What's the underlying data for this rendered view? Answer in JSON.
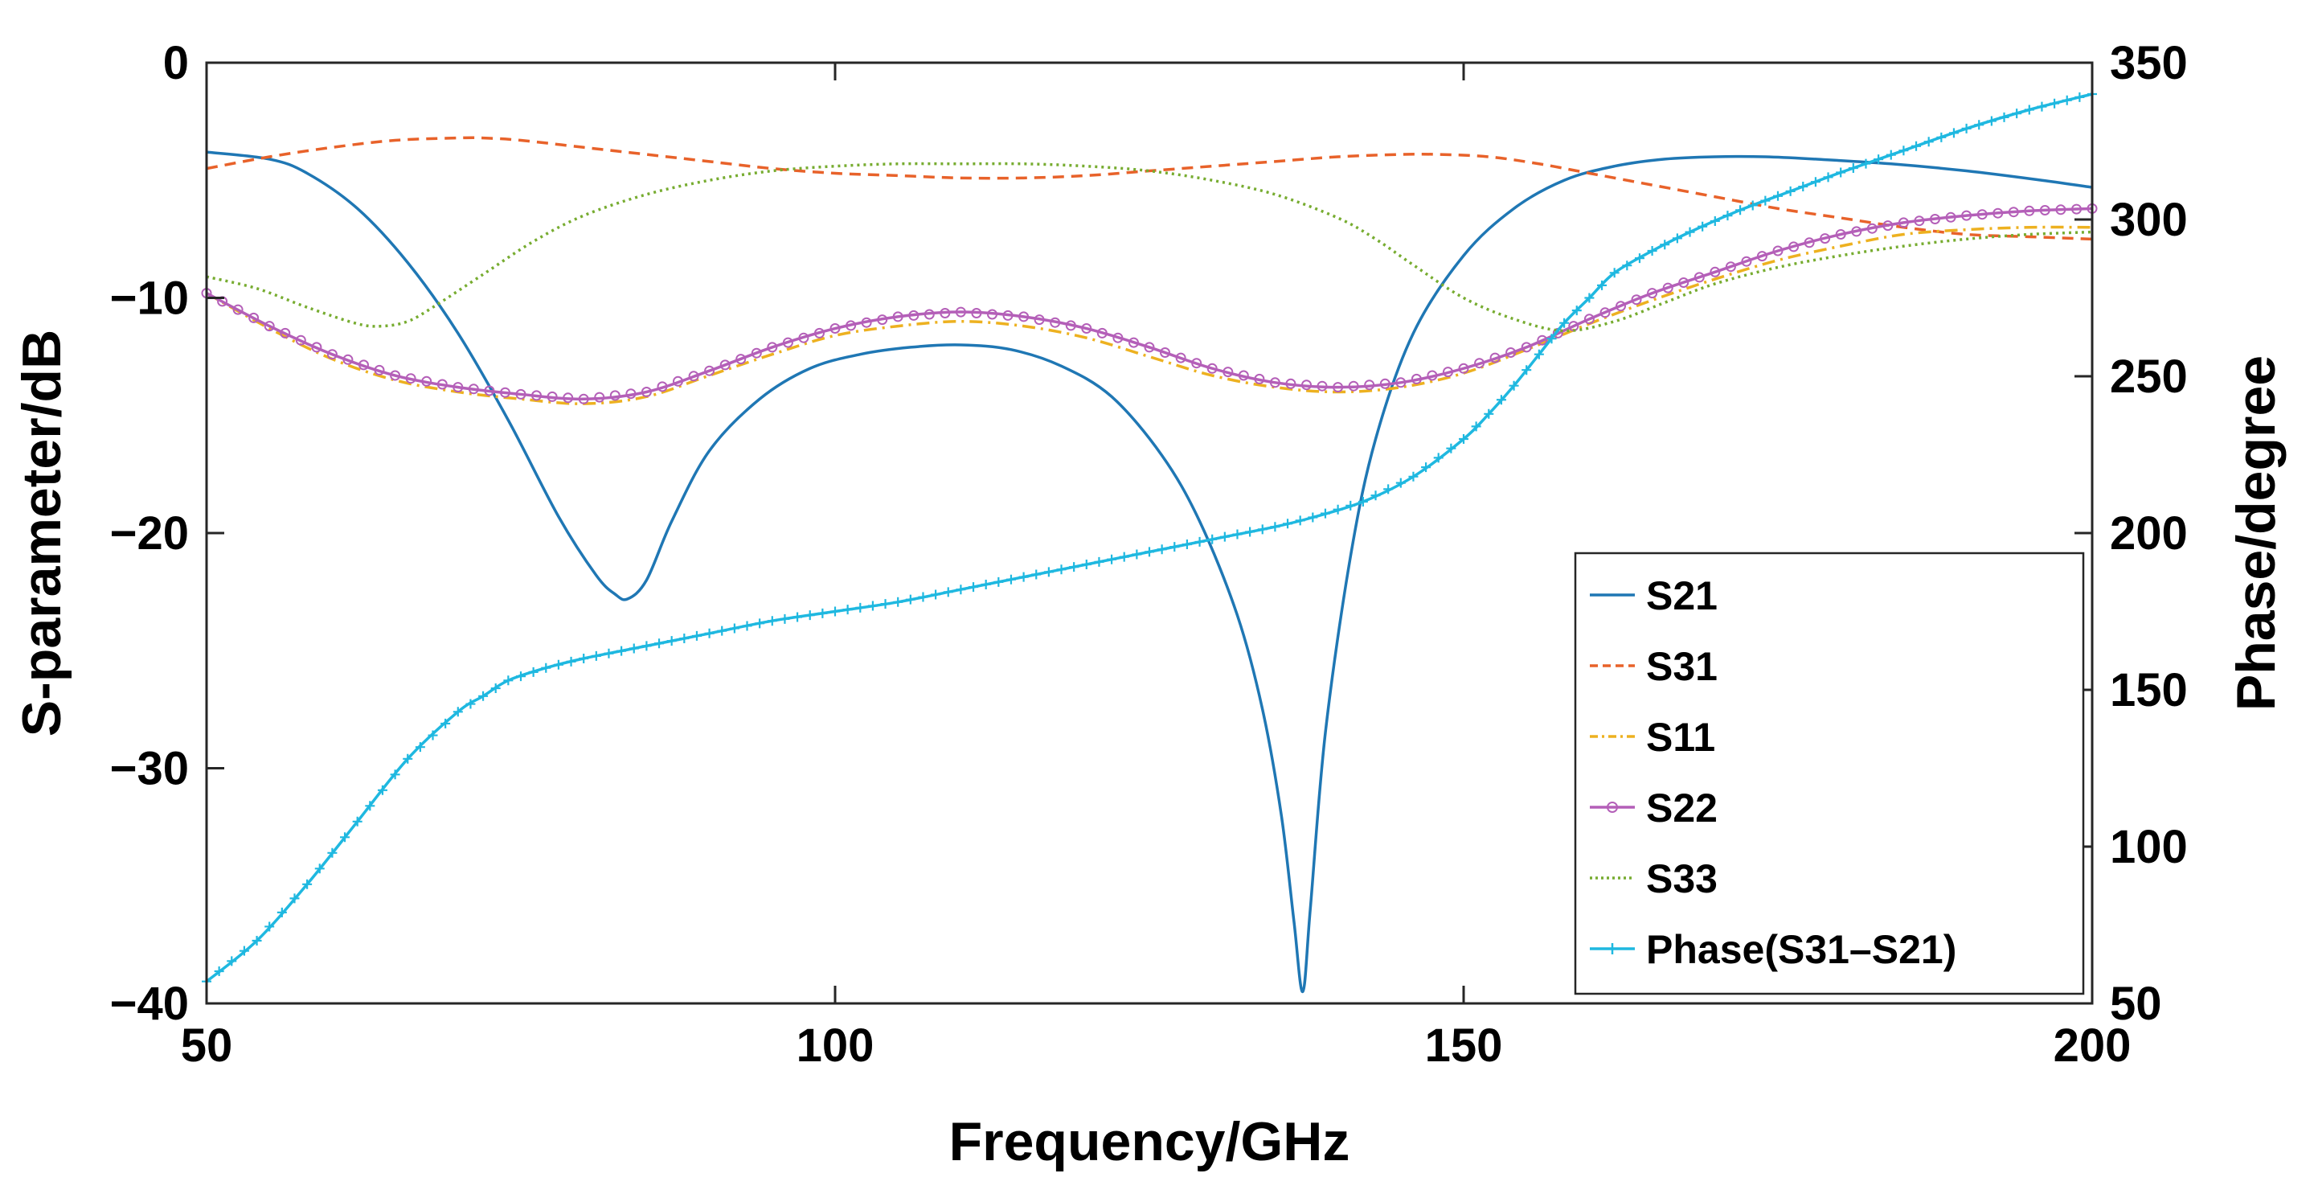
{
  "chart_data": {
    "type": "line",
    "xlabel": "Frequency/GHz",
    "ylabel": "S-parameter/dB",
    "y2label": "Phase/degree",
    "xlim": [
      50,
      200
    ],
    "ylim": [
      -40,
      0
    ],
    "y2lim": [
      50,
      350
    ],
    "xticks": [
      50,
      100,
      150,
      200
    ],
    "xtick_labels": [
      "50",
      "100",
      "150",
      "200"
    ],
    "yticks": [
      0,
      -10,
      -20,
      -30,
      -40
    ],
    "ytick_labels": [
      "0",
      "−10",
      "−20",
      "−30",
      "−40"
    ],
    "y2ticks": [
      350,
      300,
      250,
      200,
      150,
      100,
      50
    ],
    "y2tick_labels": [
      "350",
      "300",
      "250",
      "200",
      "150",
      "100",
      "50"
    ],
    "grid": false,
    "legend_position": "bottom-right",
    "series": [
      {
        "name": "S21",
        "axis": "left",
        "color": "#1f77b4",
        "dash": "solid",
        "marker": "none",
        "x": [
          50,
          55,
          58,
          62,
          66,
          70,
          74,
          78,
          81,
          82.5,
          83.5,
          85,
          87,
          90,
          94,
          98,
          102,
          106,
          110,
          114,
          118,
          122,
          126,
          129,
          132,
          134,
          135.5,
          136.5,
          137.2,
          137.8,
          139,
          141,
          143,
          146,
          150,
          154,
          158,
          162,
          166,
          170,
          174,
          178,
          184,
          190,
          196,
          200
        ],
        "y": [
          -3.8,
          -4.1,
          -4.7,
          -6.2,
          -8.5,
          -11.5,
          -15.2,
          -19.3,
          -21.8,
          -22.6,
          -22.8,
          -22.0,
          -19.5,
          -16.5,
          -14.3,
          -13.0,
          -12.4,
          -12.1,
          -12.0,
          -12.2,
          -12.9,
          -14.2,
          -16.7,
          -19.5,
          -23.5,
          -27.5,
          -32.0,
          -36.5,
          -39.5,
          -36.0,
          -28.5,
          -21.0,
          -16.0,
          -11.5,
          -8.2,
          -6.2,
          -5.0,
          -4.4,
          -4.1,
          -4.0,
          -4.0,
          -4.1,
          -4.3,
          -4.6,
          -5.0,
          -5.3
        ]
      },
      {
        "name": "S31",
        "axis": "left",
        "color": "#e8622a",
        "dash": "dashed",
        "marker": "none",
        "x": [
          50,
          55,
          60,
          65,
          70,
          72,
          75,
          80,
          85,
          90,
          95,
          100,
          105,
          110,
          115,
          120,
          125,
          130,
          135,
          140,
          145,
          148,
          152,
          156,
          160,
          165,
          170,
          175,
          180,
          185,
          190,
          195,
          200
        ],
        "y": [
          -4.5,
          -4.0,
          -3.6,
          -3.3,
          -3.2,
          -3.2,
          -3.3,
          -3.6,
          -3.9,
          -4.2,
          -4.5,
          -4.7,
          -4.8,
          -4.9,
          -4.9,
          -4.8,
          -4.6,
          -4.4,
          -4.2,
          -4.0,
          -3.9,
          -3.9,
          -4.0,
          -4.3,
          -4.7,
          -5.2,
          -5.7,
          -6.2,
          -6.6,
          -7.0,
          -7.3,
          -7.4,
          -7.5
        ]
      },
      {
        "name": "S11",
        "axis": "left",
        "color": "#edb120",
        "dash": "dashdot",
        "marker": "none",
        "x": [
          50,
          55,
          60,
          65,
          70,
          75,
          80,
          85,
          90,
          95,
          100,
          105,
          110,
          115,
          120,
          125,
          130,
          135,
          140,
          145,
          150,
          155,
          160,
          165,
          170,
          175,
          180,
          185,
          190,
          195,
          200
        ],
        "y": [
          -9.8,
          -11.3,
          -12.6,
          -13.5,
          -14.0,
          -14.3,
          -14.5,
          -14.2,
          -13.3,
          -12.4,
          -11.6,
          -11.2,
          -11.0,
          -11.2,
          -11.7,
          -12.5,
          -13.3,
          -13.8,
          -14.0,
          -13.8,
          -13.2,
          -12.2,
          -11.1,
          -10.1,
          -9.2,
          -8.4,
          -7.8,
          -7.3,
          -7.1,
          -7.0,
          -7.0
        ]
      },
      {
        "name": "S22",
        "axis": "left",
        "color": "#b45fb8",
        "dash": "solid",
        "marker": "circle",
        "x": [
          50,
          55,
          60,
          65,
          70,
          75,
          80,
          85,
          90,
          95,
          100,
          105,
          110,
          115,
          120,
          125,
          130,
          135,
          140,
          145,
          150,
          155,
          160,
          165,
          170,
          175,
          180,
          185,
          190,
          195,
          200
        ],
        "y": [
          -9.8,
          -11.2,
          -12.4,
          -13.3,
          -13.8,
          -14.1,
          -14.3,
          -14.0,
          -13.1,
          -12.1,
          -11.3,
          -10.8,
          -10.6,
          -10.8,
          -11.3,
          -12.1,
          -13.0,
          -13.6,
          -13.8,
          -13.6,
          -13.0,
          -12.1,
          -10.9,
          -9.8,
          -8.9,
          -8.0,
          -7.3,
          -6.8,
          -6.5,
          -6.3,
          -6.2
        ]
      },
      {
        "name": "S33",
        "axis": "left",
        "color": "#77ac30",
        "dash": "dotted",
        "marker": "none",
        "x": [
          50,
          54,
          58,
          62,
          64,
          66,
          68,
          72,
          76,
          80,
          85,
          90,
          95,
          100,
          105,
          110,
          115,
          120,
          125,
          130,
          135,
          140,
          143,
          146,
          150,
          154,
          158,
          162,
          166,
          170,
          175,
          180,
          185,
          190,
          195,
          200
        ],
        "y": [
          -9.1,
          -9.6,
          -10.4,
          -11.1,
          -11.2,
          -11.0,
          -10.4,
          -9.0,
          -7.6,
          -6.5,
          -5.6,
          -5.0,
          -4.6,
          -4.4,
          -4.3,
          -4.3,
          -4.3,
          -4.4,
          -4.6,
          -5.0,
          -5.6,
          -6.6,
          -7.5,
          -8.6,
          -10.0,
          -10.9,
          -11.4,
          -11.0,
          -10.2,
          -9.4,
          -8.7,
          -8.2,
          -7.8,
          -7.5,
          -7.3,
          -7.2
        ]
      },
      {
        "name": "Phase(S31–S21)",
        "axis": "right",
        "color": "#1fb8e0",
        "dash": "solid",
        "marker": "plus",
        "x": [
          50,
          54,
          58,
          62,
          66,
          70,
          72,
          74,
          77,
          80,
          85,
          90,
          95,
          100,
          105,
          110,
          115,
          120,
          125,
          130,
          135,
          138,
          142,
          146,
          150,
          152,
          154,
          156,
          158,
          160,
          162,
          165,
          168,
          172,
          176,
          180,
          185,
          190,
          195,
          200
        ],
        "y": [
          57,
          70,
          88,
          108,
          128,
          143,
          148,
          153,
          157,
          160,
          164,
          168,
          172,
          175,
          178,
          182,
          186,
          190,
          194,
          198,
          202,
          205,
          210,
          218,
          230,
          238,
          247,
          257,
          267,
          275,
          283,
          290,
          296,
          303,
          309,
          315,
          322,
          329,
          335,
          340
        ]
      }
    ]
  }
}
